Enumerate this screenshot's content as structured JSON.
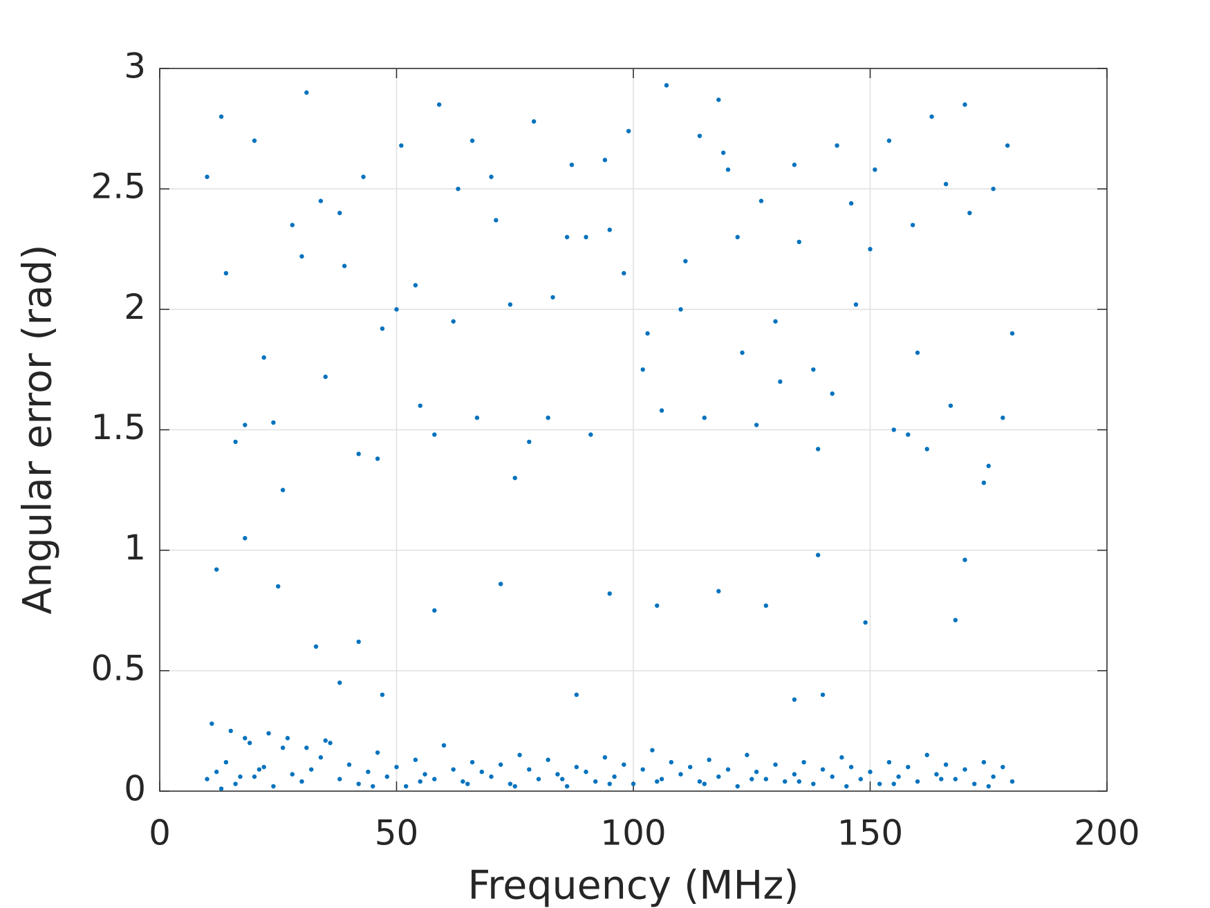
{
  "chart_data": {
    "type": "scatter",
    "xlabel": "Frequency (MHz)",
    "ylabel": "Angular error (rad)",
    "xlim": [
      0,
      200
    ],
    "ylim": [
      0,
      3
    ],
    "xticks": [
      0,
      50,
      100,
      150,
      200
    ],
    "yticks": [
      0,
      0.5,
      1,
      1.5,
      2,
      2.5,
      3
    ],
    "grid": true,
    "series": [
      {
        "color": "#0072bd",
        "x": [
          10,
          12,
          14,
          16,
          18,
          20,
          22,
          24,
          26,
          28,
          30,
          32,
          34,
          36,
          38,
          40,
          42,
          44,
          46,
          48,
          50,
          52,
          54,
          56,
          58,
          60,
          62,
          64,
          66,
          68,
          70,
          72,
          74,
          76,
          78,
          80,
          82,
          84,
          86,
          88,
          90,
          92,
          94,
          96,
          98,
          100,
          102,
          104,
          106,
          108,
          110,
          112,
          114,
          116,
          118,
          120,
          122,
          124,
          126,
          128,
          130,
          132,
          134,
          136,
          138,
          140,
          142,
          144,
          146,
          148,
          150,
          152,
          154,
          156,
          158,
          160,
          162,
          164,
          166,
          168,
          170,
          172,
          174,
          176,
          178,
          180,
          11,
          15,
          19,
          23,
          27,
          31,
          35,
          45,
          55,
          65,
          75,
          85,
          95,
          105,
          115,
          125,
          135,
          145,
          155,
          165,
          175,
          13,
          17,
          21,
          12,
          18,
          25,
          33,
          38,
          42,
          47,
          58,
          72,
          88,
          95,
          105,
          118,
          128,
          139,
          149,
          168,
          170,
          134,
          140,
          10,
          13,
          16,
          20,
          24,
          28,
          31,
          35,
          39,
          43,
          47,
          51,
          55,
          59,
          63,
          67,
          71,
          75,
          79,
          83,
          87,
          91,
          95,
          99,
          103,
          107,
          111,
          115,
          119,
          123,
          127,
          131,
          135,
          139,
          143,
          147,
          151,
          155,
          159,
          163,
          167,
          171,
          175,
          179,
          14,
          22,
          30,
          38,
          46,
          54,
          62,
          70,
          78,
          86,
          94,
          102,
          110,
          118,
          126,
          134,
          142,
          150,
          158,
          166,
          174,
          180,
          18,
          34,
          50,
          66,
          82,
          98,
          114,
          130,
          146,
          162,
          178,
          26,
          58,
          90,
          106,
          122,
          138,
          154,
          170,
          42,
          74,
          120,
          160,
          176
        ],
        "y": [
          0.05,
          0.08,
          0.12,
          0.03,
          0.22,
          0.06,
          0.1,
          0.02,
          0.18,
          0.07,
          0.04,
          0.09,
          0.14,
          0.2,
          0.05,
          0.11,
          0.03,
          0.08,
          0.16,
          0.06,
          0.1,
          0.02,
          0.13,
          0.07,
          0.05,
          0.19,
          0.09,
          0.04,
          0.12,
          0.08,
          0.06,
          0.11,
          0.03,
          0.15,
          0.09,
          0.05,
          0.13,
          0.07,
          0.02,
          0.1,
          0.08,
          0.04,
          0.14,
          0.06,
          0.11,
          0.03,
          0.09,
          0.17,
          0.05,
          0.12,
          0.07,
          0.1,
          0.04,
          0.13,
          0.06,
          0.09,
          0.02,
          0.15,
          0.08,
          0.05,
          0.11,
          0.04,
          0.07,
          0.12,
          0.03,
          0.09,
          0.06,
          0.14,
          0.1,
          0.05,
          0.08,
          0.03,
          0.12,
          0.06,
          0.1,
          0.04,
          0.15,
          0.07,
          0.11,
          0.05,
          0.09,
          0.03,
          0.12,
          0.06,
          0.1,
          0.04,
          0.28,
          0.25,
          0.2,
          0.24,
          0.22,
          0.18,
          0.21,
          0.02,
          0.04,
          0.03,
          0.02,
          0.05,
          0.03,
          0.04,
          0.03,
          0.05,
          0.04,
          0.02,
          0.03,
          0.05,
          0.02,
          0.01,
          0.06,
          0.09,
          0.92,
          1.05,
          0.85,
          0.6,
          0.45,
          0.62,
          0.4,
          0.75,
          0.86,
          0.4,
          0.82,
          0.77,
          0.83,
          0.77,
          0.98,
          0.7,
          0.71,
          0.96,
          0.38,
          0.4,
          2.55,
          2.8,
          1.45,
          2.7,
          1.53,
          2.35,
          2.9,
          1.72,
          2.18,
          2.55,
          1.92,
          2.68,
          1.6,
          2.85,
          2.5,
          1.55,
          2.37,
          1.3,
          2.78,
          2.05,
          2.6,
          1.48,
          2.33,
          2.74,
          1.9,
          2.93,
          2.2,
          1.55,
          2.65,
          1.82,
          2.45,
          1.7,
          2.28,
          1.42,
          2.68,
          2.02,
          2.58,
          1.5,
          2.35,
          2.8,
          1.6,
          2.4,
          1.35,
          2.68,
          2.15,
          1.8,
          2.22,
          2.4,
          1.38,
          2.1,
          1.95,
          2.55,
          1.45,
          2.3,
          2.62,
          1.75,
          2.0,
          2.87,
          1.52,
          2.6,
          1.65,
          2.25,
          1.48,
          2.52,
          1.28,
          1.9,
          1.52,
          2.45,
          2.0,
          2.7,
          1.55,
          2.15,
          2.72,
          1.95,
          2.44,
          1.42,
          1.55,
          1.25,
          1.48,
          2.3,
          1.58,
          2.3,
          1.75,
          2.7,
          2.85,
          1.4,
          2.02,
          2.58,
          1.82,
          2.5
        ]
      }
    ]
  }
}
